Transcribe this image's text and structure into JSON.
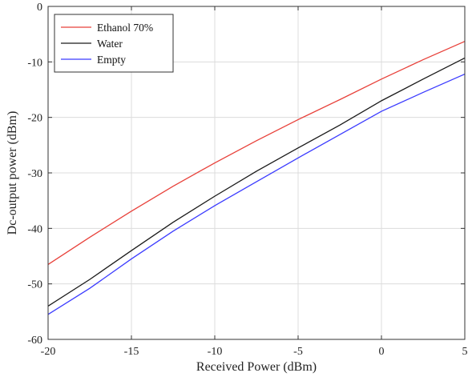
{
  "chart_data": {
    "type": "line",
    "xlabel": "Received Power (dBm)",
    "ylabel": "Dc-output power (dBm)",
    "xlim": [
      -20,
      5
    ],
    "ylim": [
      -60,
      0
    ],
    "xticks": [
      -20,
      -15,
      -10,
      -5,
      0,
      5
    ],
    "yticks": [
      0,
      -10,
      -20,
      -30,
      -40,
      -50,
      -60
    ],
    "xtick_labels": [
      "-20",
      "-15",
      "-10",
      "-5",
      "0",
      "5"
    ],
    "ytick_labels": [
      "0",
      "-10",
      "-20",
      "-30",
      "-40",
      "-50",
      "-60"
    ],
    "grid": true,
    "legend_position": "top-left",
    "x": [
      -20,
      -17.5,
      -15,
      -12.5,
      -10,
      -7.5,
      -5,
      -2.5,
      0,
      2.5,
      5
    ],
    "series": [
      {
        "name": "Ethanol 70%",
        "color": "#e8413a",
        "values": [
          -46.5,
          -41.6,
          -36.9,
          -32.4,
          -28.2,
          -24.2,
          -20.4,
          -16.8,
          -13.1,
          -9.6,
          -6.3
        ]
      },
      {
        "name": "Water",
        "color": "#1a1a1a",
        "values": [
          -54.0,
          -49.2,
          -44.0,
          -38.9,
          -34.2,
          -29.7,
          -25.5,
          -21.4,
          -17.0,
          -13.1,
          -9.3
        ]
      },
      {
        "name": "Empty",
        "color": "#3b3bff",
        "values": [
          -55.5,
          -50.8,
          -45.5,
          -40.5,
          -35.9,
          -31.6,
          -27.3,
          -23.1,
          -18.9,
          -15.5,
          -12.2
        ]
      }
    ]
  }
}
